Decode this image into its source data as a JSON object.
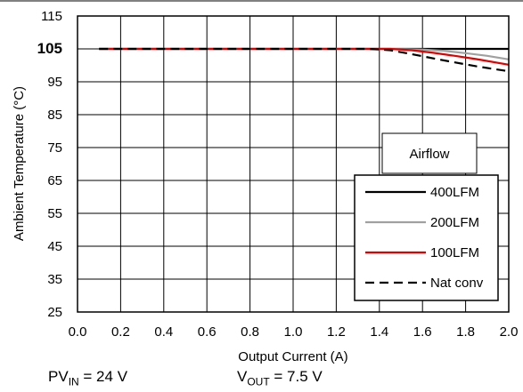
{
  "chart_data": {
    "type": "line",
    "title": "",
    "xlabel": "Output Current (A)",
    "ylabel": "Ambient Temperature (°C)",
    "xlim": [
      0.0,
      2.0
    ],
    "ylim": [
      25,
      115
    ],
    "x_ticks": [
      "0.0",
      "0.2",
      "0.4",
      "0.6",
      "0.8",
      "1.0",
      "1.2",
      "1.4",
      "1.6",
      "1.8",
      "2.0"
    ],
    "y_ticks": [
      "25",
      "35",
      "45",
      "55",
      "65",
      "75",
      "85",
      "95",
      "105",
      "115"
    ],
    "highlighted_y_tick": "105",
    "grid": true,
    "legend_title": "Airflow",
    "legend_position": "lower-right",
    "series": [
      {
        "name": "400LFM",
        "color": "#000000",
        "dash": "solid",
        "points": [
          [
            0.1,
            105
          ],
          [
            1.4,
            105
          ],
          [
            2.0,
            105
          ]
        ]
      },
      {
        "name": "200LFM",
        "color": "#a0a0a0",
        "dash": "solid",
        "points": [
          [
            0.1,
            105
          ],
          [
            1.45,
            105
          ],
          [
            1.6,
            104.8
          ],
          [
            1.7,
            104.4
          ],
          [
            1.8,
            103.7
          ],
          [
            1.9,
            102.9
          ],
          [
            2.0,
            101.8
          ]
        ]
      },
      {
        "name": "100LFM",
        "color": "#e00000",
        "dash": "solid",
        "points": [
          [
            0.1,
            105
          ],
          [
            1.45,
            105
          ],
          [
            1.55,
            104.6
          ],
          [
            1.65,
            103.8
          ],
          [
            1.75,
            102.9
          ],
          [
            1.85,
            101.9
          ],
          [
            2.0,
            100.2
          ]
        ]
      },
      {
        "name": "Nat conv",
        "color": "#000000",
        "dash": "dashed",
        "points": [
          [
            0.1,
            105
          ],
          [
            1.35,
            105
          ],
          [
            1.45,
            104.6
          ],
          [
            1.55,
            103.4
          ],
          [
            1.65,
            102.1
          ],
          [
            1.75,
            100.9
          ],
          [
            1.85,
            99.7
          ],
          [
            2.0,
            98.2
          ]
        ]
      }
    ]
  },
  "conditions": {
    "pv_label": "PV",
    "pv_sub": "IN",
    "pv_value": " = 24 V",
    "vout_label": "V",
    "vout_sub": "OUT",
    "vout_value": " = 7.5 V"
  }
}
